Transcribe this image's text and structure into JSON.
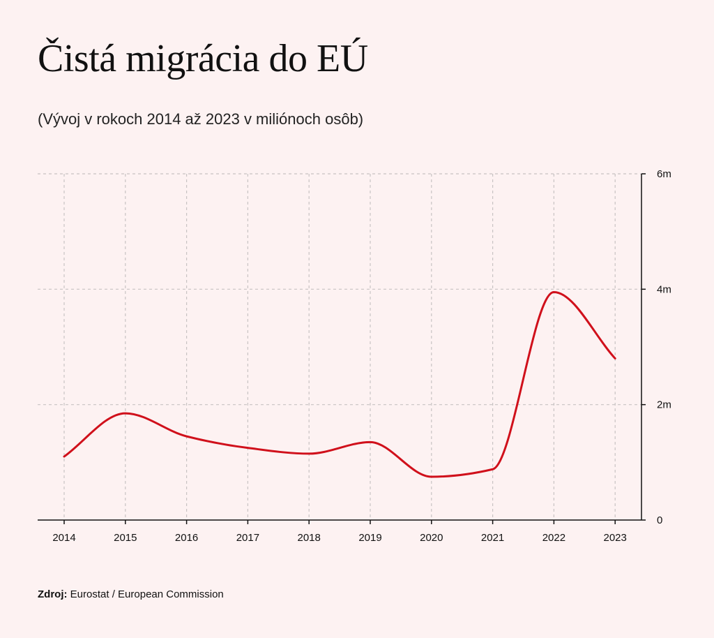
{
  "title": "Čistá migrácia do EÚ",
  "subtitle": "(Vývoj v rokoch 2014 až 2023 v miliónoch osôb)",
  "source": {
    "label": "Zdroj:",
    "text": "Eurostat / European Commission"
  },
  "colors": {
    "line": "#d0101b",
    "grid": "#c8c3c3",
    "axis": "#111111",
    "background": "#fdf2f2"
  },
  "chart_data": {
    "type": "line",
    "title": "Čistá migrácia do EÚ",
    "subtitle": "(Vývoj v rokoch 2014 až 2023 v miliónoch osôb)",
    "x": [
      "2014",
      "2015",
      "2016",
      "2017",
      "2018",
      "2019",
      "2020",
      "2021",
      "2022",
      "2023"
    ],
    "series": [
      {
        "values": [
          1.1,
          1.85,
          1.45,
          1.25,
          1.15,
          1.35,
          0.75,
          0.88,
          3.95,
          2.8
        ]
      }
    ],
    "ylim": [
      0,
      6
    ],
    "yticks": [
      0,
      2,
      4,
      6
    ],
    "ytick_labels": [
      "0",
      "2m",
      "4m",
      "6m"
    ],
    "y_axis_side": "right",
    "grid": true,
    "grid_style": "dashed",
    "legend": "none"
  }
}
